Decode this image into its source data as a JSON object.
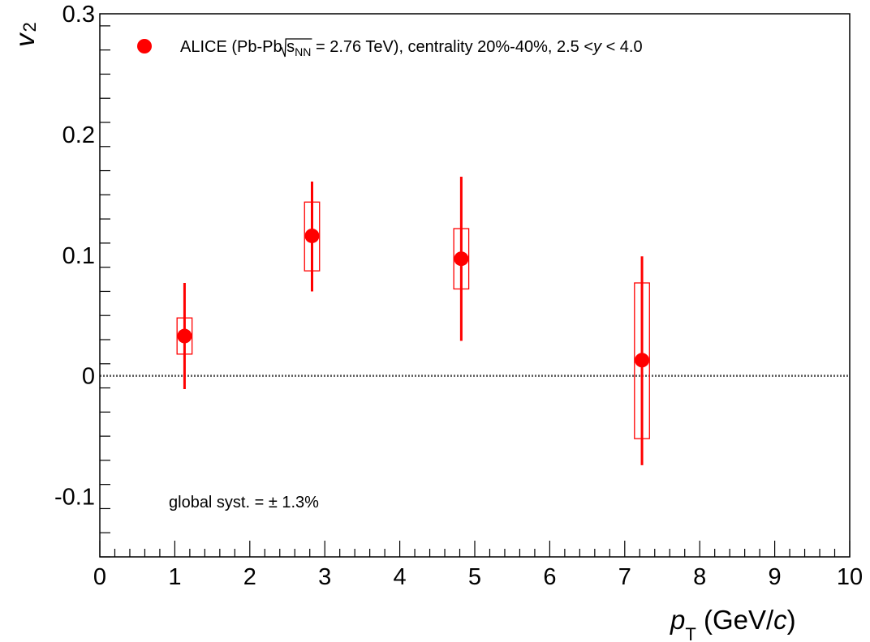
{
  "chart_data": {
    "type": "scatter",
    "xlabel": {
      "main": "p",
      "sub": "T",
      "unit": " (GeV/c)"
    },
    "ylabel": {
      "main": "v",
      "sub": "2"
    },
    "xlim": [
      0,
      10
    ],
    "ylim": [
      -0.15,
      0.3
    ],
    "x_ticks": [
      "0",
      "1",
      "2",
      "3",
      "4",
      "5",
      "6",
      "7",
      "8",
      "9",
      "10"
    ],
    "y_ticks": [
      {
        "value": -0.1,
        "label": "-0.1"
      },
      {
        "value": 0,
        "label": "0"
      },
      {
        "value": 0.1,
        "label": "0.1"
      },
      {
        "value": 0.2,
        "label": "0.2"
      },
      {
        "value": 0.3,
        "label": "0.3"
      }
    ],
    "zero_line": true,
    "grid": false,
    "marker_color": "#ff0000",
    "legend": {
      "position": "top",
      "prefix": "ALICE (Pb-Pb ",
      "sqrt_s": "s",
      "sqrt_sub": "NN",
      "energy": " = 2.76 TeV), centrality 20%-40%, 2.5 <",
      "y_var": "y",
      "suffix": " < 4.0"
    },
    "annotation": "global syst. = ± 1.3%",
    "series": [
      {
        "name": "ALICE (Pb-Pb √s_NN = 2.76 TeV), centrality 20%-40%, 2.5 < y < 4.0",
        "points": [
          {
            "x": 1.13,
            "y": 0.033,
            "stat_low": -0.011,
            "stat_high": 0.077,
            "sys_low": 0.018,
            "sys_high": 0.048,
            "sys_x_low": 1.03,
            "sys_x_high": 1.23
          },
          {
            "x": 2.83,
            "y": 0.116,
            "stat_low": 0.07,
            "stat_high": 0.161,
            "sys_low": 0.087,
            "sys_high": 0.144,
            "sys_x_low": 2.73,
            "sys_x_high": 2.93
          },
          {
            "x": 4.82,
            "y": 0.097,
            "stat_low": 0.029,
            "stat_high": 0.165,
            "sys_low": 0.072,
            "sys_high": 0.122,
            "sys_x_low": 4.72,
            "sys_x_high": 4.92
          },
          {
            "x": 7.23,
            "y": 0.013,
            "stat_low": -0.074,
            "stat_high": 0.099,
            "sys_low": -0.052,
            "sys_high": 0.077,
            "sys_x_low": 7.13,
            "sys_x_high": 7.33
          }
        ]
      }
    ]
  }
}
